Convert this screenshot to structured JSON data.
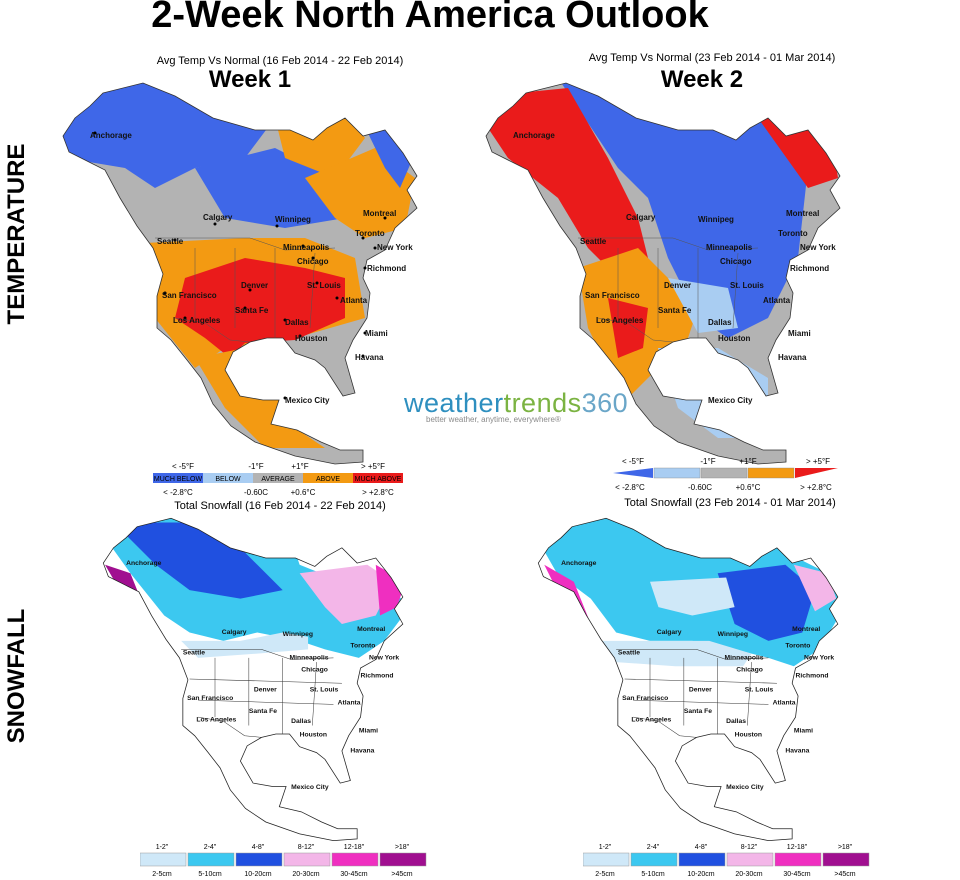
{
  "title": "2-Week North America Outlook",
  "rows": {
    "temperature": "TEMPERATURE",
    "snowfall": "SNOWFALL"
  },
  "maps": {
    "temp_week1": {
      "title": "Avg Temp Vs Normal (16 Feb 2014 - 22 Feb 2014)",
      "week": "Week 1"
    },
    "temp_week2": {
      "title": "Avg Temp Vs Normal (23 Feb 2014 - 01 Mar 2014)",
      "week": "Week 2"
    },
    "snow_week1": {
      "title": "Total Snowfall (16 Feb 2014 - 22 Feb 2014)"
    },
    "snow_week2": {
      "title": "Total Snowfall (23 Feb 2014 - 01 Mar 2014)"
    }
  },
  "cities": {
    "anchorage": "Anchorage",
    "calgary": "Calgary",
    "winnipeg": "Winnipeg",
    "seattle": "Seattle",
    "montreal": "Montreal",
    "toronto": "Toronto",
    "minneapolis": "Minneapolis",
    "chicago": "Chicago",
    "new_york": "New York",
    "richmond": "Richmond",
    "denver": "Denver",
    "st_louis": "St. Louis",
    "san_francisco": "San Francisco",
    "santa_fe": "Santa Fe",
    "atlanta": "Atlanta",
    "los_angeles": "Los Angeles",
    "dallas": "Dallas",
    "houston": "Houston",
    "miami": "Miami",
    "havana": "Havana",
    "mexico_city": "Mexico City"
  },
  "temp_legend": {
    "top": [
      "< -5°F",
      "-1°F",
      "+1°F",
      "> +5°F"
    ],
    "bottom": [
      "< -2.8°C",
      "-0.60C",
      "+0.6°C",
      "> +2.8°C"
    ],
    "categories": [
      "MUCH BELOW",
      "BELOW",
      "AVERAGE",
      "ABOVE",
      "MUCH ABOVE"
    ],
    "colors": {
      "much_below": "#3f67e8",
      "below": "#a9cdf2",
      "average": "#b3b3b3",
      "above": "#f39a12",
      "much_above": "#ea1b1b"
    }
  },
  "snow_legend": {
    "inches": [
      "1-2\"",
      "2-4\"",
      "4-8\"",
      "8-12\"",
      "12-18\"",
      ">18\""
    ],
    "cm": [
      "2-5cm",
      "5-10cm",
      "10-20cm",
      "20-30cm",
      "30-45cm",
      ">45cm"
    ],
    "colors": [
      "#cfe8f8",
      "#3cc8f0",
      "#2050e0",
      "#f3b6e8",
      "#ef2fc0",
      "#a00f90"
    ]
  },
  "brand": {
    "part1": "weather",
    "part2": "trends",
    "part3": "360",
    "tagline": "better weather, anytime, everywhere®"
  }
}
